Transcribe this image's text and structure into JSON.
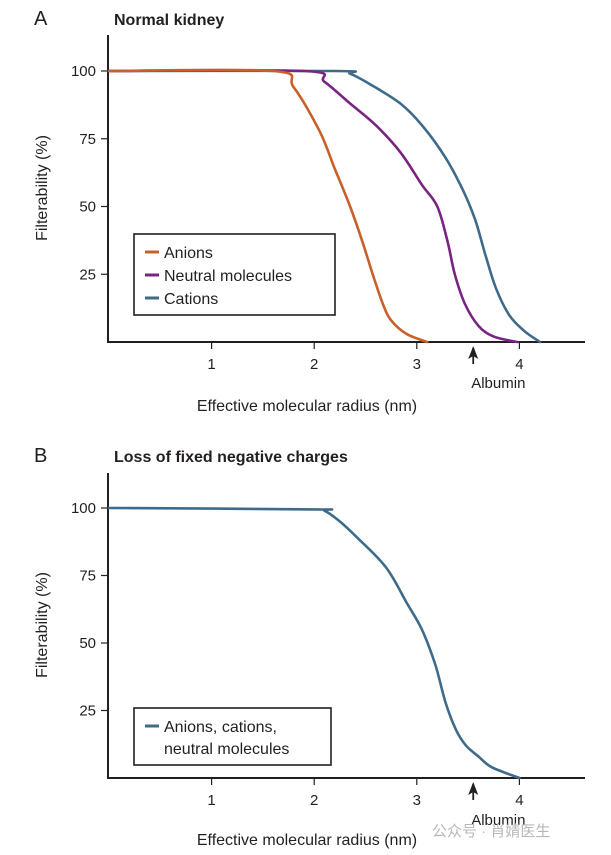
{
  "chart_data": [
    {
      "type": "line",
      "panel_letter": "A",
      "title": "Normal kidney",
      "xlabel": "Effective molecular radius (nm)",
      "ylabel": "Filterability (%)",
      "xlim": [
        0,
        4.6
      ],
      "ylim": [
        0,
        100
      ],
      "xticks": [
        "1",
        "2",
        "3",
        "4"
      ],
      "xtick_values": [
        1,
        2,
        3,
        4
      ],
      "yticks": [
        "100",
        "75",
        "50",
        "25"
      ],
      "ytick_values": [
        100,
        75,
        50,
        25
      ],
      "grid": false,
      "legend_position": "bottom-left",
      "annotation": {
        "label": "Albumin",
        "x": 3.55
      },
      "series": [
        {
          "name": "Anions",
          "color": "#c8602a",
          "x": [
            0,
            1.6,
            1.8,
            2.05,
            2.2,
            2.35,
            2.47,
            2.57,
            2.67,
            2.75,
            2.9,
            3.1
          ],
          "y": [
            100,
            100,
            94,
            78,
            64,
            50,
            37,
            25,
            14,
            8,
            3,
            0
          ]
        },
        {
          "name": "Neutral molecules",
          "color": "#7b2382",
          "x": [
            0,
            1.9,
            2.1,
            2.35,
            2.6,
            2.84,
            3.05,
            3.2,
            3.3,
            3.37,
            3.47,
            3.6,
            3.75,
            3.98
          ],
          "y": [
            100,
            100,
            96,
            88,
            80,
            70,
            58,
            50,
            37,
            25,
            14,
            6,
            2,
            0
          ]
        },
        {
          "name": "Cations",
          "color": "#3f6b8a",
          "x": [
            0,
            2.2,
            2.35,
            2.55,
            2.84,
            3.05,
            3.28,
            3.45,
            3.57,
            3.67,
            3.77,
            3.9,
            4.05,
            4.2
          ],
          "y": [
            100,
            100,
            99,
            95,
            88,
            80,
            68,
            56,
            45,
            32,
            20,
            10,
            4,
            0
          ]
        }
      ]
    },
    {
      "type": "line",
      "panel_letter": "B",
      "title": "Loss of fixed negative charges",
      "xlabel": "Effective molecular radius (nm)",
      "ylabel": "Filterability (%)",
      "xlim": [
        0,
        4.6
      ],
      "ylim": [
        0,
        100
      ],
      "xticks": [
        "1",
        "2",
        "3",
        "4"
      ],
      "xtick_values": [
        1,
        2,
        3,
        4
      ],
      "yticks": [
        "100",
        "75",
        "50",
        "25"
      ],
      "ytick_values": [
        100,
        75,
        50,
        25
      ],
      "grid": false,
      "legend_position": "bottom-left",
      "annotation": {
        "label": "Albumin",
        "x": 3.55
      },
      "series": [
        {
          "name": "Anions, cations, neutral molecules",
          "legend_lines": [
            "Anions, cations,",
            "neutral molecules"
          ],
          "color": "#3f6b8a",
          "x": [
            0,
            2.0,
            2.1,
            2.25,
            2.42,
            2.7,
            2.9,
            3.05,
            3.18,
            3.28,
            3.38,
            3.48,
            3.6,
            3.73,
            4.0
          ],
          "y": [
            100,
            99.5,
            99,
            95,
            89,
            78,
            65,
            55,
            42,
            28,
            18,
            12,
            8,
            4,
            0
          ]
        }
      ]
    }
  ],
  "watermark": "公众号 · 肖婧医生"
}
